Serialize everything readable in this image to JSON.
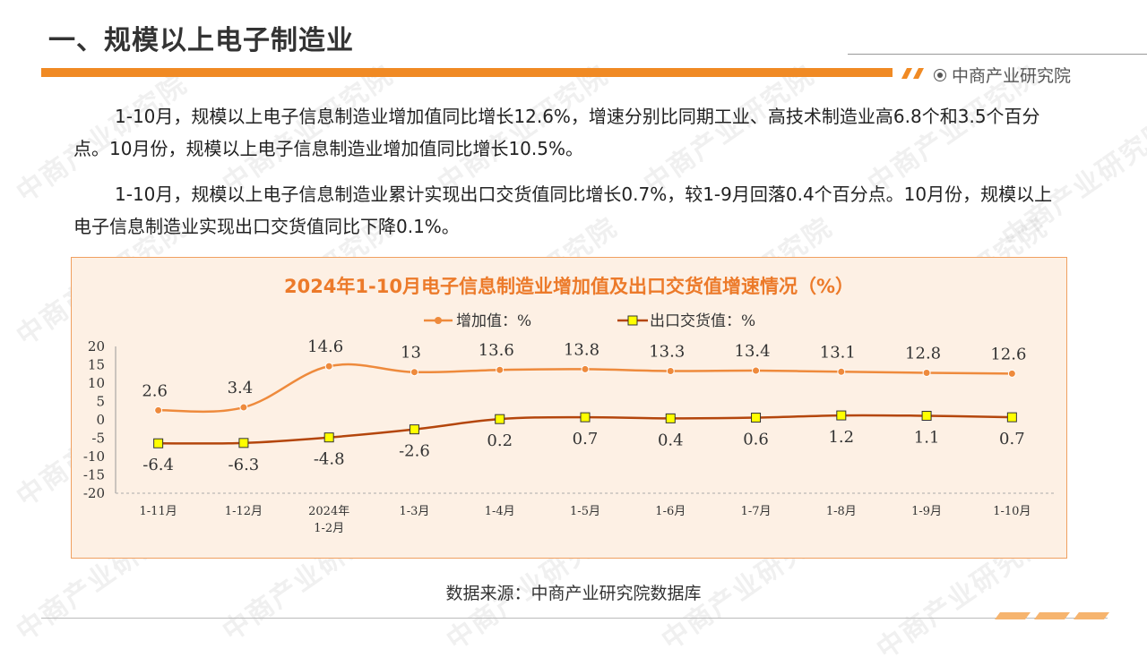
{
  "header": {
    "title": "一、规模以上电子制造业",
    "brand": "中商产业研究院"
  },
  "paragraphs": [
    "1-10月，规模以上电子信息制造业增加值同比增长12.6%，增速分别比同期工业、高技术制造业高6.8个和3.5个百分点。10月份，规模以上电子信息制造业增加值同比增长10.5%。",
    "1-10月，规模以上电子信息制造业累计实现出口交货值同比增长0.7%，较1-9月回落0.4个百分点。10月份，规模以上电子信息制造业实现出口交货值同比下降0.1%。"
  ],
  "source": "数据来源：中商产业研究院数据库",
  "watermark": "中商产业研究院",
  "colors": {
    "accent": "#f08a24",
    "line1": "#ee8a3c",
    "line2": "#b4460c",
    "marker2": "#ffff00",
    "chart_bg": "#fdf1e5"
  },
  "chart_data": {
    "type": "line",
    "title": "2024年1-10月电子信息制造业增加值及出口交货值增速情况（%）",
    "categories": [
      "1-11月",
      "1-12月",
      "2024年\n1-2月",
      "1-3月",
      "1-4月",
      "1-5月",
      "1-6月",
      "1-7月",
      "1-8月",
      "1-9月",
      "1-10月"
    ],
    "series": [
      {
        "name": "增加值：%",
        "values": [
          2.6,
          3.4,
          14.6,
          13,
          13.6,
          13.8,
          13.3,
          13.4,
          13.1,
          12.8,
          12.6
        ]
      },
      {
        "name": "出口交货值：%",
        "values": [
          -6.4,
          -6.3,
          -4.8,
          -2.6,
          0.2,
          0.7,
          0.4,
          0.6,
          1.2,
          1.1,
          0.7
        ]
      }
    ],
    "ylim": [
      -20,
      20
    ],
    "yticks": [
      20,
      15,
      10,
      5,
      0,
      -5,
      -10,
      -15,
      -20
    ],
    "legend": "top-center"
  }
}
